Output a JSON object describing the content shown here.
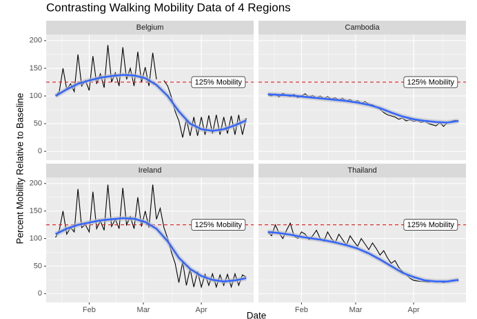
{
  "chart_data": {
    "type": "facet-line",
    "title": "Contrasting Walking Mobility Data of 4 Regions",
    "xlabel": "Date",
    "ylabel": "Percent Mobility Relative to Baseline",
    "xlim": [
      8,
      119
    ],
    "xticks": [
      {
        "value": 31,
        "label": "Feb"
      },
      {
        "value": 60,
        "label": "Mar"
      },
      {
        "value": 91,
        "label": "Apr"
      }
    ],
    "ylim": [
      -16,
      211
    ],
    "yticks": [
      0,
      50,
      100,
      150,
      200
    ],
    "grid": true,
    "reference_line": {
      "value": 125,
      "label": "125% Mobility",
      "color": "#e41a1c"
    },
    "x": [
      13,
      15,
      17,
      19,
      21,
      23,
      25,
      27,
      29,
      31,
      33,
      35,
      37,
      39,
      41,
      43,
      45,
      47,
      49,
      51,
      53,
      55,
      57,
      59,
      61,
      63,
      65,
      67,
      69,
      71,
      73,
      75,
      77,
      79,
      81,
      83,
      85,
      87,
      89,
      91,
      93,
      95,
      97,
      99,
      101,
      103,
      105,
      107,
      109,
      111,
      113,
      115
    ],
    "facets": [
      {
        "title": "Belgium",
        "series": [
          {
            "color": "#000000",
            "values": [
              100,
              108,
              150,
              112,
              122,
              108,
              175,
              118,
              128,
              110,
              172,
              122,
              140,
              115,
              192,
              125,
              142,
              118,
              188,
              130,
              150,
              118,
              180,
              125,
              152,
              118,
              178,
              130,
              null,
              128,
              118,
              98,
              72,
              55,
              25,
              58,
              28,
              62,
              28,
              62,
              30,
              65,
              32,
              66,
              30,
              62,
              32,
              64,
              30,
              66,
              30,
              60
            ]
          },
          {
            "color": "#3366ff",
            "x": [
              13,
              19,
              25,
              31,
              37,
              43,
              49,
              55,
              61,
              67,
              73,
              79,
              85,
              91,
              97,
              103,
              109,
              115
            ],
            "values": [
              100,
              112,
              122,
              128,
              133,
              136,
              138,
              137,
              132,
              120,
              100,
              72,
              50,
              40,
              37,
              40,
              47,
              56
            ]
          }
        ]
      },
      {
        "title": "Cambodia",
        "series": [
          {
            "color": "#000000",
            "values": [
              102,
              100,
              104,
              98,
              105,
              101,
              99,
              103,
              97,
              100,
              104,
              98,
              101,
              96,
              100,
              95,
              99,
              94,
              97,
              92,
              96,
              90,
              94,
              88,
              92,
              86,
              90,
              85,
              84,
              80,
              76,
              70,
              66,
              64,
              62,
              58,
              60,
              55,
              57,
              54,
              56,
              52,
              55,
              50,
              48,
              46,
              52,
              45,
              52,
              54,
              56,
              55
            ]
          },
          {
            "color": "#3366ff",
            "x": [
              13,
              19,
              25,
              31,
              37,
              43,
              49,
              55,
              61,
              67,
              73,
              79,
              85,
              91,
              97,
              103,
              109,
              115
            ],
            "values": [
              103,
              102,
              101,
              99,
              97,
              95,
              93,
              91,
              88,
              84,
              78,
              70,
              63,
              58,
              55,
              53,
              52,
              55
            ]
          }
        ]
      },
      {
        "title": "Ireland",
        "series": [
          {
            "color": "#000000",
            "values": [
              102,
              115,
              150,
              108,
              120,
              112,
              190,
              120,
              125,
              112,
              185,
              118,
              132,
              115,
              198,
              122,
              135,
              118,
              192,
              125,
              140,
              118,
              175,
              122,
              150,
              120,
              198,
              135,
              155,
              120,
              100,
              75,
              55,
              20,
              58,
              15,
              45,
              12,
              40,
              12,
              35,
              15,
              36,
              12,
              34,
              15,
              35,
              12,
              36,
              15,
              34,
              30
            ]
          },
          {
            "color": "#3366ff",
            "x": [
              13,
              19,
              25,
              31,
              37,
              43,
              49,
              55,
              61,
              67,
              73,
              79,
              85,
              91,
              97,
              103,
              109,
              115
            ],
            "values": [
              108,
              118,
              125,
              129,
              133,
              135,
              137,
              136,
              130,
              118,
              95,
              65,
              45,
              32,
              25,
              22,
              24,
              28
            ]
          }
        ]
      },
      {
        "title": "Thailand",
        "series": [
          {
            "color": "#000000",
            "values": [
              112,
              105,
              125,
              110,
              100,
              115,
              128,
              105,
              100,
              112,
              108,
              98,
              105,
              115,
              100,
              95,
              112,
              100,
              92,
              108,
              98,
              88,
              105,
              95,
              86,
              100,
              90,
              80,
              92,
              82,
              70,
              78,
              65,
              55,
              60,
              48,
              40,
              35,
              28,
              24,
              23,
              22,
              22,
              21,
              23,
              22,
              22,
              20,
              22,
              24,
              25,
              23
            ]
          },
          {
            "color": "#3366ff",
            "x": [
              13,
              19,
              25,
              31,
              37,
              43,
              49,
              55,
              61,
              67,
              73,
              79,
              85,
              91,
              97,
              103,
              109,
              115
            ],
            "values": [
              112,
              110,
              107,
              103,
              100,
              97,
              93,
              88,
              82,
              73,
              62,
              50,
              38,
              30,
              24,
              22,
              22,
              25
            ]
          }
        ]
      }
    ]
  }
}
